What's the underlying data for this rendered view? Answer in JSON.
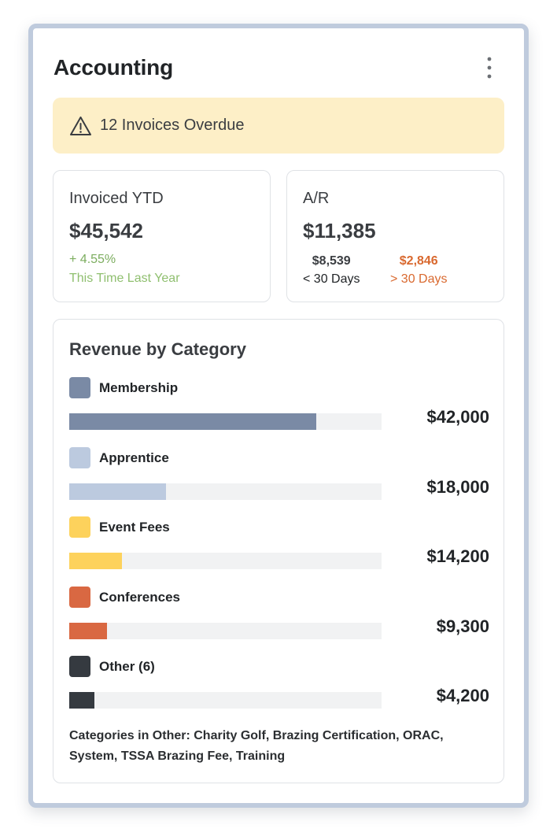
{
  "header": {
    "title": "Accounting"
  },
  "alert": {
    "text": "12 Invoices Overdue",
    "icon": "warning-triangle-icon"
  },
  "invoiced": {
    "label": "Invoiced YTD",
    "value": "$45,542",
    "delta": "+ 4.55%",
    "delta_caption": "This Time Last Year"
  },
  "ar": {
    "label": "A/R",
    "value": "$11,385",
    "under30_amount": "$8,539",
    "under30_label": "< 30 Days",
    "over30_amount": "$2,846",
    "over30_label": "> 30 Days"
  },
  "colors": {
    "membership": "#7a8aa5",
    "apprentice": "#bccadf",
    "event_fees": "#fdd25c",
    "conferences": "#d96842",
    "other": "#353a40",
    "positive": "#7cad5f",
    "negative": "#d9692f",
    "alert_bg": "#fdefc7"
  },
  "chart_data": {
    "type": "bar",
    "title": "Revenue by Category",
    "categories": [
      "Membership",
      "Apprentice",
      "Event Fees",
      "Conferences",
      "Other (6)"
    ],
    "values": [
      42000,
      18000,
      14200,
      9300,
      4200
    ],
    "value_labels": [
      "$42,000",
      "$18,000",
      "$14,200",
      "$9,300",
      "$4,200"
    ],
    "fill_fraction": [
      0.79,
      0.31,
      0.17,
      0.12,
      0.08
    ],
    "colors": [
      "#7a8aa5",
      "#bccadf",
      "#fdd25c",
      "#d96842",
      "#353a40"
    ],
    "orientation": "horizontal",
    "grid": false
  },
  "revenue": {
    "footnote": "Categories in Other: Charity Golf, Brazing Certification, ORAC, System, TSSA Brazing Fee, Training"
  }
}
